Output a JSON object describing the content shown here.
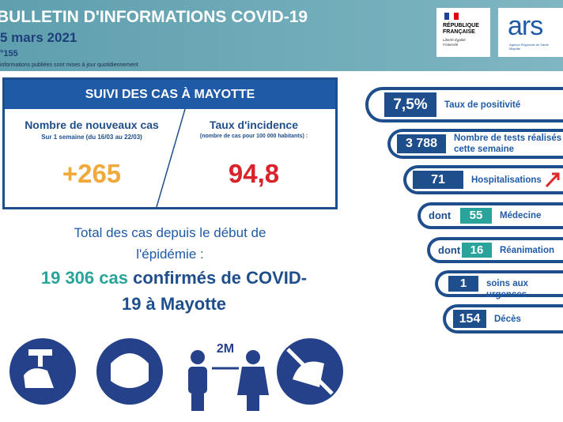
{
  "header": {
    "title": "BULLETIN D'INFORMATIONS COVID-19",
    "date": "5 mars 2021",
    "number": "°155",
    "note": "informations publiées sont mises à jour quotidiennement",
    "logo_rf": {
      "name": "RÉPUBLIQUE FRANÇAISE",
      "motto": "Liberté Égalité Fraternité"
    },
    "logo_ars": {
      "name": "ars",
      "subtitle": "Agence Régionale de Santé Mayotte"
    }
  },
  "cases_box": {
    "title": "SUIVI DES CAS À MAYOTTE",
    "new_cases": {
      "label": "Nombre de nouveaux cas",
      "period": "Sur 1 semaine (du 16/03 au 22/03)",
      "value": "+265"
    },
    "incidence": {
      "label": "Taux d'incidence",
      "note": "(nombre de cas pour 100 000 habitants) :",
      "value": "94,8"
    }
  },
  "total": {
    "intro": "Total des cas depuis le début de l'épidémie :",
    "count": "19 306 cas",
    "rest": "confirmés de COVID-19 à Mayotte"
  },
  "stats": [
    {
      "value": "7,5%",
      "label": "Taux de positivité"
    },
    {
      "value": "3 788",
      "label": "Nombre de tests réalisés cette semaine"
    },
    {
      "value": "71",
      "label": "Hospitalisations"
    },
    {
      "prefix": "dont",
      "value": "55",
      "label": "Médecine"
    },
    {
      "prefix": "dont",
      "value": "16",
      "label": "Réanimation"
    },
    {
      "value": "1",
      "label": "soins aux urgences"
    },
    {
      "value": "154",
      "label": "Décès"
    }
  ],
  "icons": {
    "distance": "2M"
  }
}
